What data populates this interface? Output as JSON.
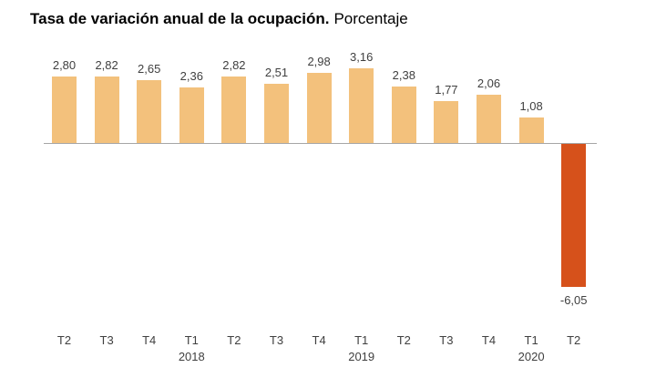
{
  "title": {
    "main": "Tasa de variación anual de la ocupación.",
    "sub": "Porcentaje"
  },
  "chart_data": {
    "type": "bar",
    "title": "Tasa de variación anual de la ocupación. Porcentaje",
    "categories": [
      "T2",
      "T3",
      "T4",
      "T1",
      "T2",
      "T3",
      "T4",
      "T1",
      "T2",
      "T3",
      "T4",
      "T1",
      "T2"
    ],
    "year_labels": [
      {
        "index": 3,
        "label": "2018"
      },
      {
        "index": 7,
        "label": "2019"
      },
      {
        "index": 11,
        "label": "2020"
      }
    ],
    "values": [
      2.8,
      2.82,
      2.65,
      2.36,
      2.82,
      2.51,
      2.98,
      3.16,
      2.38,
      1.77,
      2.06,
      1.08,
      -6.05
    ],
    "value_labels": [
      "2,80",
      "2,82",
      "2,65",
      "2,36",
      "2,82",
      "2,51",
      "2,98",
      "3,16",
      "2,38",
      "1,77",
      "2,06",
      "1,08",
      "-6,05"
    ],
    "xlabel": "",
    "ylabel": "",
    "grid": false,
    "legend": false,
    "colors": {
      "positive_bar": "#F3C17C",
      "negative_bar": "#D6511B",
      "axis": "#A6A6A6",
      "label_text": "#404040",
      "title_text": "#000000"
    }
  }
}
